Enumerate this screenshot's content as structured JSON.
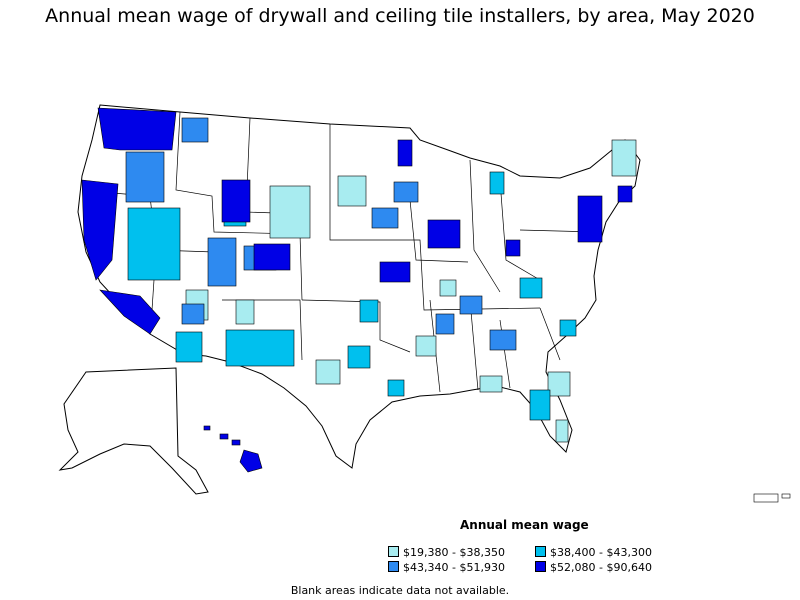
{
  "title": "Annual mean wage of drywall and ceiling tile installers, by area, May 2020",
  "legend": {
    "title": "Annual mean wage",
    "items": [
      {
        "label": "$19,380 - $38,350",
        "color": "#a8ecf0"
      },
      {
        "label": "$38,400 - $43,300",
        "color": "#00c0ee"
      },
      {
        "label": "$43,340 - $51,930",
        "color": "#2e8af0"
      },
      {
        "label": "$52,080 - $90,640",
        "color": "#0000e6"
      }
    ]
  },
  "note": "Blank areas indicate data not available.",
  "colors": {
    "no_data": "#ffffff",
    "border": "#000000"
  }
}
